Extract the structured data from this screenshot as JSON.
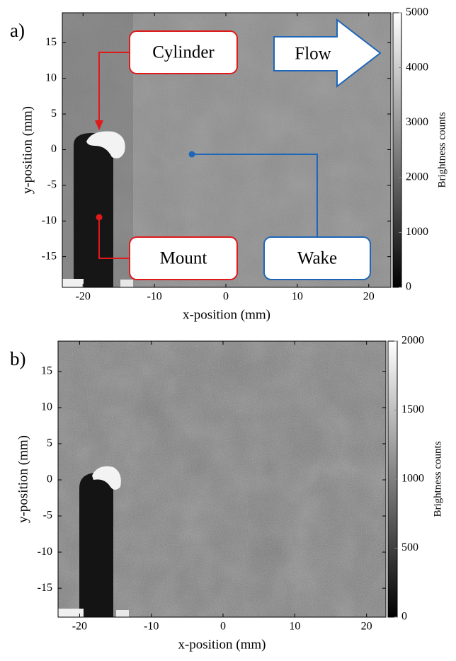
{
  "chart_data": [
    {
      "type": "image",
      "panel_label": "a)",
      "xlabel": "x-position (mm)",
      "ylabel": "y-position (mm)",
      "colorbar_label": "Brightness counts",
      "colormap": "gray",
      "xlim": [
        -22.9,
        23.1
      ],
      "ylim": [
        -19.3,
        19.2
      ],
      "xticks": [
        -20,
        -10,
        0,
        10,
        20
      ],
      "yticks": [
        -15,
        -10,
        -5,
        0,
        5,
        10,
        15
      ],
      "clim": [
        0,
        5000
      ],
      "cticks": [
        0,
        1000,
        2000,
        3000,
        4000,
        5000
      ],
      "annotations": [
        {
          "text": "Cylinder",
          "color": "#e0191b"
        },
        {
          "text": "Flow",
          "color": "#1f66b8"
        },
        {
          "text": "Mount",
          "color": "#e0191b"
        },
        {
          "text": "Wake",
          "color": "#1f66b8"
        }
      ]
    },
    {
      "type": "image",
      "panel_label": "b)",
      "xlabel": "x-position (mm)",
      "ylabel": "y-position (mm)",
      "colorbar_label": "Brightness counts",
      "colormap": "gray",
      "xlim": [
        -23.0,
        22.7
      ],
      "ylim": [
        -19.0,
        19.2
      ],
      "xticks": [
        -20,
        -10,
        0,
        10,
        20
      ],
      "yticks": [
        -15,
        -10,
        -5,
        0,
        5,
        10,
        15
      ],
      "clim": [
        0,
        2000
      ],
      "cticks": [
        0,
        500,
        1000,
        1500,
        2000
      ]
    }
  ]
}
